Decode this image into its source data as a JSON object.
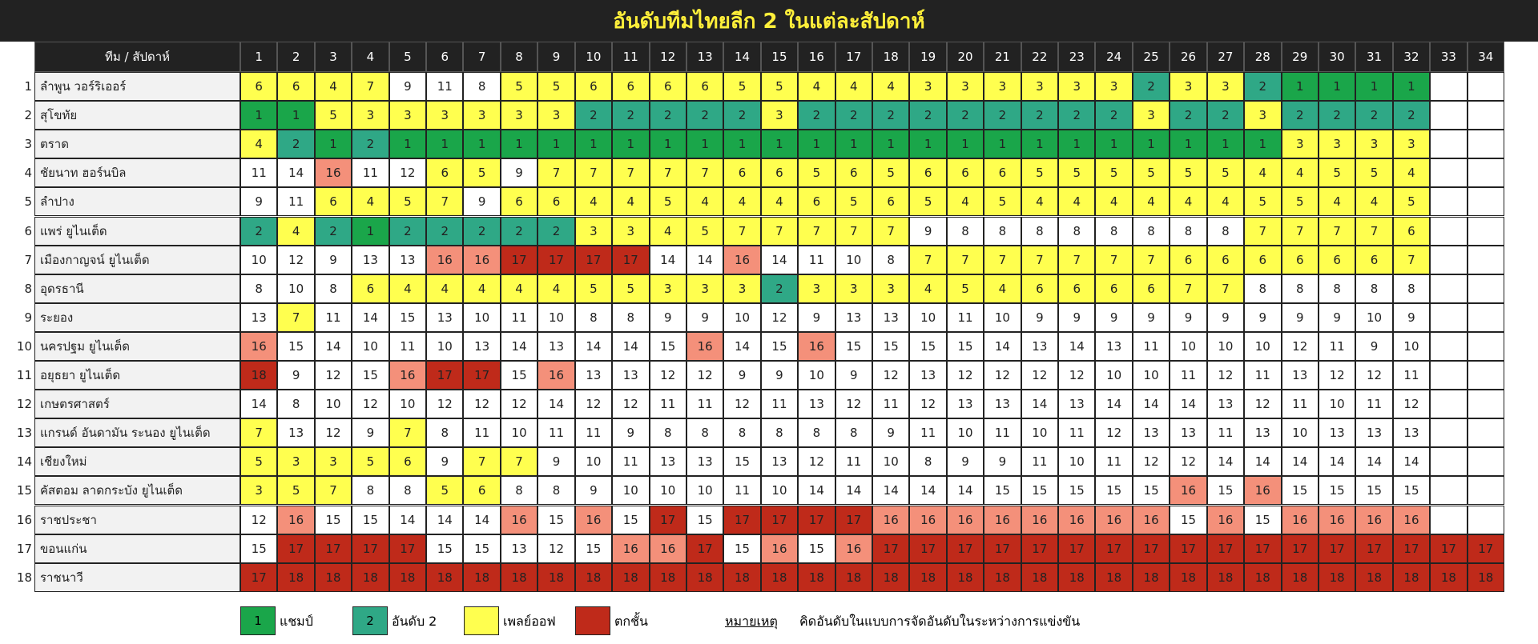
{
  "header": {
    "title": "อันดับทีมไทยลีก 2 ในแต่ละสัปดาห์"
  },
  "table": {
    "corner": "ทีม / สัปดาห์",
    "weeks": [
      1,
      2,
      3,
      4,
      5,
      6,
      7,
      8,
      9,
      10,
      11,
      12,
      13,
      14,
      15,
      16,
      17,
      18,
      19,
      20,
      21,
      22,
      23,
      24,
      25,
      26,
      27,
      28,
      29,
      30,
      31,
      32,
      33,
      34
    ],
    "rank_colors": {
      "1": "#1aa64a",
      "2": "#2fa886",
      "3": "#ffff4f",
      "4": "#ffff4f",
      "5": "#ffff4f",
      "6": "#ffff4f",
      "7": "#ffff4f",
      "16": "#f4907a",
      "17": "#bf2a1a",
      "18": "#bf2a1a"
    },
    "rows": [
      {
        "no": 1,
        "name": "ลำพูน วอร์ริเออร์",
        "positions": [
          6,
          6,
          4,
          7,
          9,
          11,
          8,
          5,
          5,
          6,
          6,
          6,
          6,
          5,
          5,
          4,
          4,
          4,
          3,
          3,
          3,
          3,
          3,
          3,
          2,
          3,
          3,
          2,
          1,
          1,
          1,
          1,
          null,
          null
        ]
      },
      {
        "no": 2,
        "name": "สุโขทัย",
        "positions": [
          1,
          1,
          5,
          3,
          3,
          3,
          3,
          3,
          3,
          2,
          2,
          2,
          2,
          2,
          3,
          2,
          2,
          2,
          2,
          2,
          2,
          2,
          2,
          2,
          3,
          2,
          2,
          3,
          2,
          2,
          2,
          2,
          null,
          null
        ]
      },
      {
        "no": 3,
        "name": "ตราด",
        "positions": [
          4,
          2,
          1,
          2,
          1,
          1,
          1,
          1,
          1,
          1,
          1,
          1,
          1,
          1,
          1,
          1,
          1,
          1,
          1,
          1,
          1,
          1,
          1,
          1,
          1,
          1,
          1,
          1,
          3,
          3,
          3,
          3,
          null,
          null
        ]
      },
      {
        "no": 4,
        "name": "ชัยนาท ฮอร์นบิล",
        "positions": [
          11,
          14,
          16,
          11,
          12,
          6,
          5,
          9,
          7,
          7,
          7,
          7,
          7,
          6,
          6,
          5,
          6,
          5,
          6,
          6,
          6,
          5,
          5,
          5,
          5,
          5,
          5,
          4,
          4,
          5,
          5,
          4,
          null,
          null
        ]
      },
      {
        "no": 5,
        "name": "ลำปาง",
        "positions": [
          9,
          11,
          6,
          4,
          5,
          7,
          9,
          6,
          6,
          4,
          4,
          5,
          4,
          4,
          4,
          6,
          5,
          6,
          5,
          4,
          5,
          4,
          4,
          4,
          4,
          4,
          4,
          5,
          5,
          4,
          4,
          5,
          null,
          null
        ]
      },
      {
        "no": 6,
        "name": "แพร่ ยูไนเต็ด",
        "positions": [
          2,
          4,
          2,
          1,
          2,
          2,
          2,
          2,
          2,
          3,
          3,
          4,
          5,
          7,
          7,
          7,
          7,
          7,
          9,
          8,
          8,
          8,
          8,
          8,
          8,
          8,
          8,
          7,
          7,
          7,
          7,
          6,
          null,
          null
        ]
      },
      {
        "no": 7,
        "name": "เมืองกาญจน์ ยูไนเต็ด",
        "positions": [
          10,
          12,
          9,
          13,
          13,
          16,
          16,
          17,
          17,
          17,
          17,
          14,
          14,
          16,
          14,
          11,
          10,
          8,
          7,
          7,
          7,
          7,
          7,
          7,
          7,
          6,
          6,
          6,
          6,
          6,
          6,
          7,
          null,
          null
        ]
      },
      {
        "no": 8,
        "name": "อุดรธานี",
        "positions": [
          8,
          10,
          8,
          6,
          4,
          4,
          4,
          4,
          4,
          5,
          5,
          3,
          3,
          3,
          2,
          3,
          3,
          3,
          4,
          5,
          4,
          6,
          6,
          6,
          6,
          7,
          7,
          8,
          8,
          8,
          8,
          8,
          null,
          null
        ]
      },
      {
        "no": 9,
        "name": "ระยอง",
        "positions": [
          13,
          7,
          11,
          14,
          15,
          13,
          10,
          11,
          10,
          8,
          8,
          9,
          9,
          10,
          12,
          9,
          13,
          13,
          10,
          11,
          10,
          9,
          9,
          9,
          9,
          9,
          9,
          9,
          9,
          9,
          10,
          9,
          null,
          null
        ]
      },
      {
        "no": 10,
        "name": "นครปฐม ยูไนเต็ด",
        "positions": [
          16,
          15,
          14,
          10,
          11,
          10,
          13,
          14,
          13,
          14,
          14,
          15,
          16,
          14,
          15,
          16,
          15,
          15,
          15,
          15,
          14,
          13,
          14,
          13,
          11,
          10,
          10,
          10,
          12,
          11,
          9,
          10,
          null,
          null
        ]
      },
      {
        "no": 11,
        "name": "อยุธยา ยูไนเต็ด",
        "positions": [
          18,
          9,
          12,
          15,
          16,
          17,
          17,
          15,
          16,
          13,
          13,
          12,
          12,
          9,
          9,
          10,
          9,
          12,
          13,
          12,
          12,
          12,
          12,
          10,
          10,
          11,
          12,
          11,
          13,
          12,
          12,
          11,
          null,
          null
        ]
      },
      {
        "no": 12,
        "name": "เกษตรศาสตร์",
        "positions": [
          14,
          8,
          10,
          12,
          10,
          12,
          12,
          12,
          14,
          12,
          12,
          11,
          11,
          12,
          11,
          13,
          12,
          11,
          12,
          13,
          13,
          14,
          13,
          14,
          14,
          14,
          13,
          12,
          11,
          10,
          11,
          12,
          null,
          null
        ]
      },
      {
        "no": 13,
        "name": "แกรนด์ อันดามัน ระนอง ยูไนเต็ด",
        "positions": [
          7,
          13,
          12,
          9,
          7,
          8,
          11,
          10,
          11,
          11,
          9,
          8,
          8,
          8,
          8,
          8,
          8,
          9,
          11,
          10,
          11,
          10,
          11,
          12,
          13,
          13,
          11,
          13,
          10,
          13,
          13,
          13,
          null,
          null
        ]
      },
      {
        "no": 14,
        "name": "เชียงใหม่",
        "positions": [
          5,
          3,
          3,
          5,
          6,
          9,
          7,
          7,
          9,
          10,
          11,
          13,
          13,
          15,
          13,
          12,
          11,
          10,
          8,
          9,
          9,
          11,
          10,
          11,
          12,
          12,
          14,
          14,
          14,
          14,
          14,
          14,
          null,
          null
        ]
      },
      {
        "no": 15,
        "name": "คัสตอม ลาดกระบัง ยูไนเต็ด",
        "positions": [
          3,
          5,
          7,
          8,
          8,
          5,
          6,
          8,
          8,
          9,
          10,
          10,
          10,
          11,
          10,
          14,
          14,
          14,
          14,
          14,
          15,
          15,
          15,
          15,
          15,
          16,
          15,
          16,
          15,
          15,
          15,
          15,
          null,
          null
        ]
      },
      {
        "no": 16,
        "name": "ราชประชา",
        "positions": [
          12,
          16,
          15,
          15,
          14,
          14,
          14,
          16,
          15,
          16,
          15,
          17,
          15,
          17,
          17,
          17,
          17,
          16,
          16,
          16,
          16,
          16,
          16,
          16,
          16,
          15,
          16,
          15,
          16,
          16,
          16,
          16,
          null,
          null
        ]
      },
      {
        "no": 17,
        "name": "ขอนแก่น",
        "positions": [
          15,
          17,
          17,
          17,
          17,
          15,
          15,
          13,
          12,
          15,
          16,
          16,
          17,
          15,
          16,
          15,
          16,
          17,
          17,
          17,
          17,
          17,
          17,
          17,
          17,
          17,
          17,
          17,
          17,
          17,
          17,
          17,
          17,
          17
        ]
      },
      {
        "no": 18,
        "name": "ราชนาวี",
        "positions": [
          17,
          18,
          18,
          18,
          18,
          18,
          18,
          18,
          18,
          18,
          18,
          18,
          18,
          18,
          18,
          18,
          18,
          18,
          18,
          18,
          18,
          18,
          18,
          18,
          18,
          18,
          18,
          18,
          18,
          18,
          18,
          18,
          18,
          18
        ]
      }
    ]
  },
  "legend": {
    "items": [
      {
        "value": 1,
        "label": "แชมป์",
        "color": "#1aa64a"
      },
      {
        "value": 2,
        "label": "อันดับ 2",
        "color": "#2fa886"
      },
      {
        "label": "เพลย์ออฟ",
        "color": "#ffff4f"
      },
      {
        "label": "ตกชั้น",
        "color": "#bf2a1a"
      }
    ],
    "note_label": "หมายเหตุ",
    "note": "คิดอันดับในแบบการจัดอันดับในระหว่างการแข่งขัน"
  }
}
